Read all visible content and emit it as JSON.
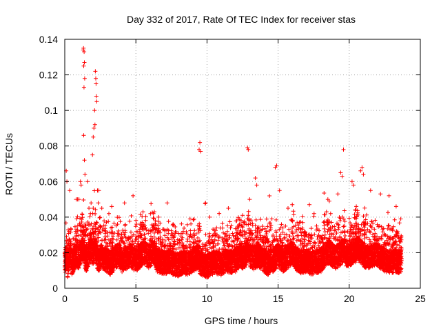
{
  "chart_data": {
    "type": "scatter",
    "title": "Day 332 of 2017, Rate Of TEC Index for receiver stas",
    "xlabel": "GPS time / hours",
    "ylabel": "ROTI / TECUs",
    "xlim": [
      0,
      25
    ],
    "ylim": [
      0,
      0.14
    ],
    "xticks": [
      0,
      5,
      10,
      15,
      20,
      25
    ],
    "xtick_labels": [
      "0",
      "5",
      "10",
      "15",
      "20",
      "25"
    ],
    "yticks": [
      0,
      0.02,
      0.04,
      0.06,
      0.08,
      0.1,
      0.12,
      0.14
    ],
    "ytick_labels": [
      "0",
      "0.02",
      "0.04",
      "0.06",
      "0.08",
      "0.1",
      "0.12",
      "0.14"
    ],
    "grid": true,
    "marker": "+",
    "color": "#ff0000",
    "series": [
      {
        "name": "stas",
        "x": [
          0.05,
          0.1,
          0.2,
          0.3,
          0.4,
          0.5,
          0.6,
          0.8,
          1.0,
          1.2,
          1.3,
          1.35,
          1.4,
          1.5,
          1.6,
          1.8,
          2.0,
          2.1,
          2.2,
          2.3,
          2.4,
          2.5,
          2.7,
          3.0,
          3.2,
          3.5,
          3.8,
          4.0,
          4.3,
          4.6,
          5.0,
          5.2,
          5.5,
          5.8,
          6.0,
          6.2,
          6.5,
          6.8,
          7.0,
          7.3,
          7.6,
          8.0,
          8.3,
          8.6,
          9.0,
          9.3,
          9.4,
          9.5,
          9.6,
          10.0,
          10.3,
          10.6,
          11.0,
          11.3,
          11.6,
          12.0,
          12.3,
          12.6,
          12.8,
          12.9,
          13.0,
          13.3,
          13.6,
          14.0,
          14.3,
          14.6,
          14.8,
          15.0,
          15.3,
          15.6,
          16.0,
          16.3,
          16.6,
          17.0,
          17.3,
          17.6,
          18.0,
          18.3,
          18.6,
          19.0,
          19.3,
          19.5,
          19.6,
          19.8,
          20.0,
          20.3,
          20.6,
          20.9,
          21.0,
          21.3,
          21.6,
          22.0,
          22.3,
          22.6,
          23.0,
          23.3,
          23.6,
          1.3,
          1.32,
          1.36,
          1.38,
          1.33,
          1.4,
          2.15,
          2.18,
          2.2,
          2.22,
          2.25,
          2.1,
          2.12,
          2.05,
          1.35,
          1.33,
          1.38,
          1.42,
          2.0,
          1.95,
          9.45,
          9.5,
          9.55,
          12.85,
          12.9,
          14.8,
          13.4,
          19.4,
          19.5,
          19.6,
          20.8,
          20.9,
          21.0,
          20.2,
          20.3,
          0.1,
          0.15,
          0.35,
          1.1,
          1.15,
          1.0,
          2.3,
          2.35,
          2.0,
          1.8,
          1.6,
          13.5,
          14.9,
          15.1,
          16.0,
          18.5,
          18.4,
          18.6,
          22.2,
          23.3,
          21.5,
          10.2,
          11.5,
          7.2,
          5.5,
          4.8,
          3.3,
          0.8,
          0.9,
          1.7,
          1.85,
          2.4,
          2.6,
          3.1,
          4.2,
          6.3,
          6.6,
          9.9,
          12.5,
          13.0,
          15.7,
          17.2,
          19.2,
          20.5,
          22.8
        ],
        "y": [
          0.015,
          0.02,
          0.012,
          0.018,
          0.022,
          0.014,
          0.016,
          0.02,
          0.018,
          0.025,
          0.03,
          0.022,
          0.02,
          0.016,
          0.018,
          0.024,
          0.02,
          0.028,
          0.022,
          0.018,
          0.016,
          0.02,
          0.018,
          0.016,
          0.014,
          0.018,
          0.02,
          0.016,
          0.018,
          0.02,
          0.016,
          0.018,
          0.022,
          0.02,
          0.018,
          0.024,
          0.016,
          0.015,
          0.014,
          0.016,
          0.014,
          0.013,
          0.015,
          0.014,
          0.016,
          0.018,
          0.02,
          0.015,
          0.014,
          0.012,
          0.014,
          0.015,
          0.013,
          0.016,
          0.015,
          0.016,
          0.02,
          0.018,
          0.022,
          0.024,
          0.02,
          0.018,
          0.02,
          0.016,
          0.014,
          0.015,
          0.018,
          0.02,
          0.016,
          0.018,
          0.022,
          0.017,
          0.015,
          0.016,
          0.014,
          0.015,
          0.016,
          0.02,
          0.022,
          0.018,
          0.02,
          0.022,
          0.024,
          0.02,
          0.02,
          0.022,
          0.024,
          0.022,
          0.02,
          0.018,
          0.02,
          0.02,
          0.018,
          0.016,
          0.015,
          0.016,
          0.015,
          0.134,
          0.135,
          0.133,
          0.127,
          0.125,
          0.118,
          0.122,
          0.118,
          0.115,
          0.108,
          0.105,
          0.1,
          0.092,
          0.09,
          0.113,
          0.086,
          0.072,
          0.064,
          0.085,
          0.075,
          0.078,
          0.082,
          0.077,
          0.079,
          0.078,
          0.068,
          0.062,
          0.065,
          0.063,
          0.078,
          0.066,
          0.068,
          0.064,
          0.06,
          0.058,
          0.066,
          0.06,
          0.055,
          0.06,
          0.058,
          0.05,
          0.055,
          0.048,
          0.045,
          0.042,
          0.06,
          0.058,
          0.069,
          0.055,
          0.047,
          0.05,
          0.043,
          0.049,
          0.053,
          0.046,
          0.055,
          0.04,
          0.045,
          0.048,
          0.043,
          0.052,
          0.046,
          0.05,
          0.05,
          0.045,
          0.048,
          0.055,
          0.045,
          0.042,
          0.048,
          0.043,
          0.04,
          0.048,
          0.041,
          0.05,
          0.045,
          0.047,
          0.053,
          0.046,
          0.052
        ]
      }
    ]
  }
}
